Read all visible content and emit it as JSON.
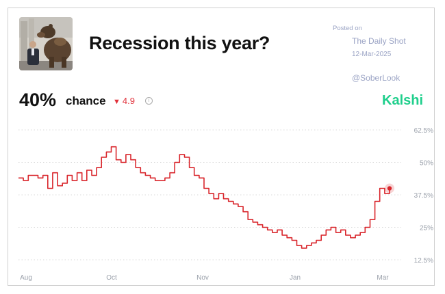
{
  "header": {
    "title": "Recession this year?",
    "posted_label": "Posted on",
    "source": "The Daily Shot",
    "date": "12-Mar-2025",
    "handle": "@SoberLook"
  },
  "summary": {
    "probability": "40%",
    "chance_label": "chance",
    "change_arrow": "▼",
    "change_value": "4.9",
    "info_icon": "info-icon"
  },
  "brand": {
    "name": "Kalshi",
    "color": "#1fcf8c"
  },
  "colors": {
    "line": "#d9262c",
    "grid": "#d9d9d9",
    "tick_text": "#9aa0aa"
  },
  "chart_data": {
    "type": "line",
    "title": "Recession this year?",
    "x_tick_labels": [
      "Aug",
      "Oct",
      "Nov",
      "Jan",
      "Mar"
    ],
    "y_tick_labels": [
      "62.5%",
      "50%",
      "37.5%",
      "25%",
      "12.5%"
    ],
    "y_ticks": [
      62.5,
      50,
      37.5,
      25,
      12.5
    ],
    "ylim": [
      10,
      66
    ],
    "grid": "horizontal dotted",
    "y_axis_side": "right",
    "series": [
      {
        "values": [
          44,
          43,
          45,
          45,
          44,
          45,
          40,
          46,
          41,
          42,
          45,
          43,
          46,
          43,
          47,
          45,
          48,
          52,
          54,
          56,
          51,
          50,
          53,
          51,
          48,
          46,
          45,
          44,
          43,
          43,
          44,
          46,
          50,
          53,
          52,
          48,
          45,
          44,
          40,
          38,
          36,
          38,
          36,
          35,
          34,
          33,
          31,
          28,
          27,
          26,
          25,
          24,
          23,
          24,
          22,
          21,
          20,
          18,
          17,
          18,
          19,
          20,
          22,
          24,
          25,
          23,
          24,
          22,
          21,
          22,
          23,
          25,
          28,
          35,
          40,
          38,
          40
        ]
      }
    ],
    "last_point_value": 40
  }
}
